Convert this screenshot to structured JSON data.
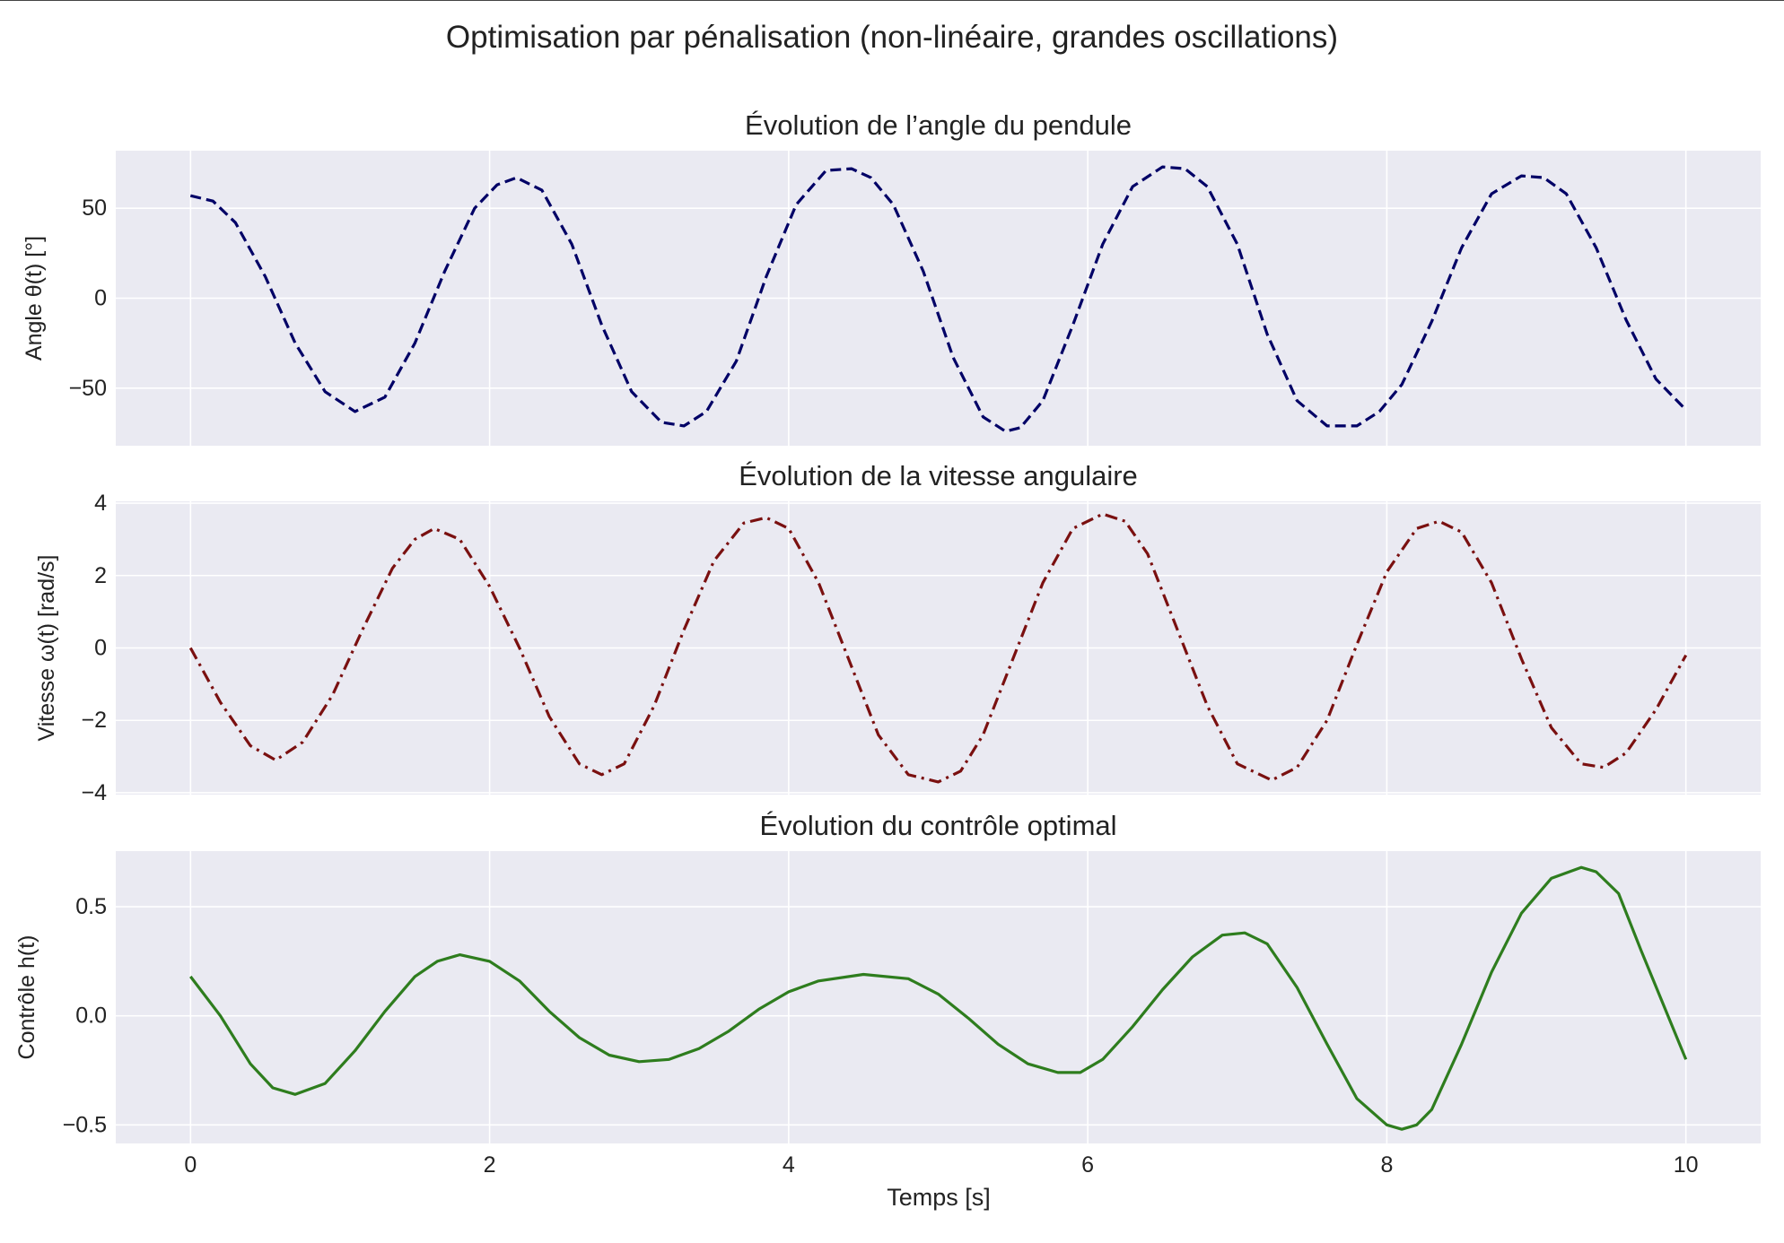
{
  "figure": {
    "suptitle": "Optimisation par pénalisation (non-linéaire, grandes oscillations)",
    "xlabel": "Temps [s]",
    "background": "#ffffff",
    "axes_face": "#eaeaf2",
    "grid_color": "#ffffff",
    "text_color": "#222222"
  },
  "chart_data": [
    {
      "type": "line",
      "title": "Évolution de l’angle du pendule",
      "xlabel": "",
      "ylabel": "Angle θ(t) [°]",
      "xlim": [
        -0.5,
        10.5
      ],
      "ylim": [
        -82,
        82
      ],
      "xticks": [
        0,
        2,
        4,
        6,
        8,
        10
      ],
      "yticks": [
        -50,
        0,
        50
      ],
      "ytick_labels": [
        "−50",
        "0",
        "50"
      ],
      "show_xtick_labels": false,
      "grid": true,
      "series": [
        {
          "color": "#000066",
          "linestyle": "dashed",
          "x": [
            0,
            0.15,
            0.3,
            0.5,
            0.7,
            0.9,
            1.1,
            1.3,
            1.5,
            1.7,
            1.9,
            2.05,
            2.18,
            2.35,
            2.55,
            2.75,
            2.95,
            3.15,
            3.3,
            3.45,
            3.65,
            3.85,
            4.05,
            4.25,
            4.42,
            4.55,
            4.7,
            4.9,
            5.1,
            5.3,
            5.45,
            5.55,
            5.7,
            5.9,
            6.1,
            6.3,
            6.5,
            6.65,
            6.8,
            7.0,
            7.2,
            7.4,
            7.6,
            7.8,
            7.95,
            8.1,
            8.3,
            8.5,
            8.7,
            8.9,
            9.05,
            9.2,
            9.4,
            9.6,
            9.8,
            10.0
          ],
          "y": [
            57,
            54,
            42,
            12,
            -25,
            -52,
            -63,
            -55,
            -25,
            15,
            50,
            63,
            67,
            60,
            30,
            -15,
            -52,
            -69,
            -71,
            -63,
            -35,
            12,
            52,
            71,
            72,
            67,
            52,
            15,
            -33,
            -66,
            -74,
            -72,
            -57,
            -15,
            30,
            62,
            73,
            72,
            62,
            30,
            -20,
            -57,
            -71,
            -71,
            -63,
            -48,
            -13,
            28,
            58,
            68,
            67,
            58,
            28,
            -12,
            -45,
            -62
          ]
        }
      ]
    },
    {
      "type": "line",
      "title": "Évolution de la vitesse angulaire",
      "xlabel": "",
      "ylabel": "Vitesse ω(t) [rad/s]",
      "xlim": [
        -0.5,
        10.5
      ],
      "ylim": [
        -4.05,
        4.05
      ],
      "xticks": [
        0,
        2,
        4,
        6,
        8,
        10
      ],
      "yticks": [
        -4,
        -2,
        0,
        2,
        4
      ],
      "ytick_labels": [
        "−4",
        "−2",
        "0",
        "2",
        "4"
      ],
      "show_xtick_labels": false,
      "grid": true,
      "series": [
        {
          "color": "#7a1010",
          "linestyle": "dashdot",
          "x": [
            0,
            0.2,
            0.4,
            0.57,
            0.75,
            0.95,
            1.15,
            1.35,
            1.5,
            1.63,
            1.8,
            2.0,
            2.2,
            2.4,
            2.6,
            2.75,
            2.9,
            3.1,
            3.3,
            3.5,
            3.7,
            3.85,
            4.0,
            4.2,
            4.4,
            4.6,
            4.8,
            5.0,
            5.15,
            5.3,
            5.5,
            5.7,
            5.9,
            6.1,
            6.25,
            6.4,
            6.6,
            6.8,
            7.0,
            7.23,
            7.4,
            7.6,
            7.8,
            8.0,
            8.2,
            8.35,
            8.5,
            8.7,
            8.9,
            9.1,
            9.3,
            9.45,
            9.6,
            9.8,
            10.0
          ],
          "y": [
            0,
            -1.5,
            -2.7,
            -3.1,
            -2.6,
            -1.3,
            0.5,
            2.2,
            3.0,
            3.3,
            3.0,
            1.7,
            0,
            -1.9,
            -3.2,
            -3.5,
            -3.2,
            -1.6,
            0.5,
            2.4,
            3.45,
            3.6,
            3.3,
            1.8,
            -0.3,
            -2.4,
            -3.5,
            -3.7,
            -3.4,
            -2.4,
            -0.3,
            1.8,
            3.3,
            3.7,
            3.5,
            2.6,
            0.5,
            -1.6,
            -3.2,
            -3.65,
            -3.3,
            -2.0,
            0.1,
            2.1,
            3.3,
            3.5,
            3.2,
            1.8,
            -0.3,
            -2.2,
            -3.2,
            -3.3,
            -2.9,
            -1.7,
            -0.2
          ]
        }
      ]
    },
    {
      "type": "line",
      "title": "Évolution du contrôle optimal",
      "xlabel": "Temps [s]",
      "ylabel": "Contrôle h(t)",
      "xlim": [
        -0.5,
        10.5
      ],
      "ylim": [
        -0.585,
        0.755
      ],
      "xticks": [
        0,
        2,
        4,
        6,
        8,
        10
      ],
      "xtick_labels": [
        "0",
        "2",
        "4",
        "6",
        "8",
        "10"
      ],
      "yticks": [
        -0.5,
        0,
        0.5
      ],
      "ytick_labels": [
        "−0.5",
        "0.0",
        "0.5"
      ],
      "show_xtick_labels": true,
      "grid": true,
      "series": [
        {
          "color": "#2e7d1e",
          "linestyle": "solid",
          "x": [
            0,
            0.2,
            0.4,
            0.55,
            0.7,
            0.9,
            1.1,
            1.3,
            1.5,
            1.65,
            1.8,
            2.0,
            2.2,
            2.4,
            2.6,
            2.8,
            3.0,
            3.2,
            3.4,
            3.6,
            3.8,
            4.0,
            4.2,
            4.5,
            4.8,
            5.0,
            5.2,
            5.4,
            5.6,
            5.8,
            5.95,
            6.1,
            6.3,
            6.5,
            6.7,
            6.9,
            7.05,
            7.2,
            7.4,
            7.6,
            7.8,
            8.0,
            8.1,
            8.2,
            8.3,
            8.5,
            8.7,
            8.9,
            9.1,
            9.3,
            9.4,
            9.55,
            9.7,
            9.85,
            10.0
          ],
          "y": [
            0.18,
            0.0,
            -0.22,
            -0.33,
            -0.36,
            -0.31,
            -0.16,
            0.02,
            0.18,
            0.25,
            0.28,
            0.25,
            0.16,
            0.02,
            -0.1,
            -0.18,
            -0.21,
            -0.2,
            -0.15,
            -0.07,
            0.03,
            0.11,
            0.16,
            0.19,
            0.17,
            0.1,
            -0.01,
            -0.13,
            -0.22,
            -0.26,
            -0.26,
            -0.2,
            -0.05,
            0.12,
            0.27,
            0.37,
            0.38,
            0.33,
            0.13,
            -0.13,
            -0.38,
            -0.5,
            -0.52,
            -0.5,
            -0.43,
            -0.13,
            0.2,
            0.47,
            0.63,
            0.68,
            0.66,
            0.56,
            0.3,
            0.05,
            -0.2
          ]
        }
      ]
    }
  ]
}
